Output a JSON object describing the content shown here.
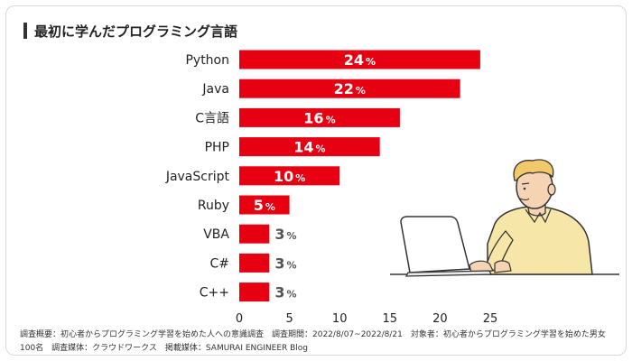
{
  "title": "最初に学んだプログラミング言語",
  "chart_data": {
    "type": "bar",
    "orientation": "horizontal",
    "title": "最初に学んだプログラミング言語",
    "categories": [
      "Python",
      "Java",
      "C言語",
      "PHP",
      "JavaScript",
      "Ruby",
      "VBA",
      "C#",
      "C++"
    ],
    "values": [
      24,
      22,
      16,
      14,
      10,
      5,
      3,
      3,
      3
    ],
    "value_suffix": "%",
    "xlim": [
      0,
      25
    ],
    "xticks": [
      0,
      5,
      10,
      15,
      20,
      25
    ],
    "grid": false,
    "bar_color": "#e60012"
  },
  "footnote": {
    "line1": "調査概要：初心者からプログラミング学習を始めた人への意識調査　調査期間：2022/8/07~2022/8/21　対象者：初心者からプログラミング学習を始めた男女",
    "line2": "100名　調査媒体：クラウドワークス　掲載媒体：SAMURAI ENGINEER Blog"
  }
}
